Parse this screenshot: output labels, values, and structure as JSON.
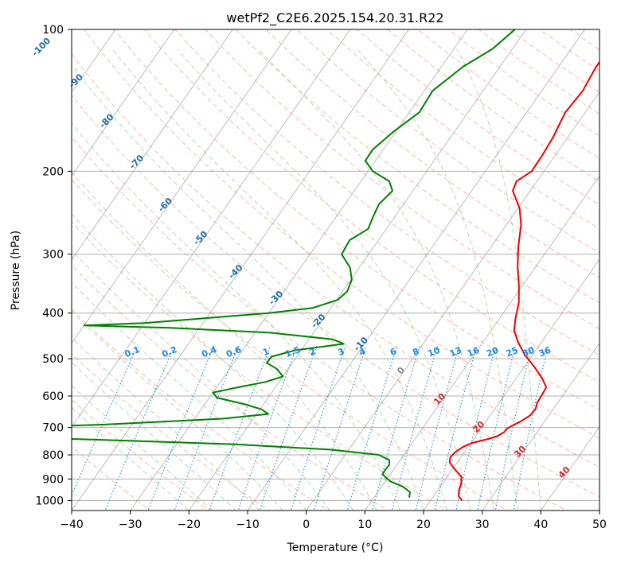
{
  "chart_data": {
    "type": "skew-t",
    "title": "wetPf2_C2E6.2025.154.20.31.R22",
    "xlabel": "Temperature (°C)",
    "ylabel": "Pressure (hPa)",
    "xlim": [
      -40,
      50
    ],
    "ylim": [
      1050,
      100
    ],
    "y_scale": "log",
    "grid": true,
    "x_ticks": [
      -40,
      -30,
      -20,
      -10,
      0,
      10,
      20,
      30,
      40,
      50
    ],
    "y_ticks": [
      100,
      200,
      300,
      400,
      500,
      600,
      700,
      800,
      900,
      1000
    ],
    "series": [
      {
        "key": "temperature",
        "color": "#ee0000",
        "points": [
          [
            1000,
            25.4
          ],
          [
            980,
            24.3
          ],
          [
            950,
            23.6
          ],
          [
            920,
            23.2
          ],
          [
            890,
            22.4
          ],
          [
            860,
            20.5
          ],
          [
            830,
            18.7
          ],
          [
            810,
            18.2
          ],
          [
            790,
            18.4
          ],
          [
            770,
            19.1
          ],
          [
            755,
            20.2
          ],
          [
            740,
            22.5
          ],
          [
            730,
            23.7
          ],
          [
            715,
            24.4
          ],
          [
            705,
            24.4
          ],
          [
            695,
            24.9
          ],
          [
            680,
            25.9
          ],
          [
            660,
            26.8
          ],
          [
            640,
            27.0
          ],
          [
            620,
            26.5
          ],
          [
            600,
            26.4
          ],
          [
            575,
            26.2
          ],
          [
            550,
            24.4
          ],
          [
            520,
            21.7
          ],
          [
            490,
            18.6
          ],
          [
            460,
            15.9
          ],
          [
            435,
            13.9
          ],
          [
            410,
            12.7
          ],
          [
            380,
            11.4
          ],
          [
            350,
            9.4
          ],
          [
            320,
            7.0
          ],
          [
            290,
            4.7
          ],
          [
            260,
            2.5
          ],
          [
            240,
            0.3
          ],
          [
            220,
            -3.0
          ],
          [
            210,
            -3.5
          ],
          [
            200,
            -2.1
          ],
          [
            185,
            -2.2
          ],
          [
            170,
            -2.5
          ],
          [
            150,
            -3.4
          ],
          [
            135,
            -3.0
          ],
          [
            120,
            -3.6
          ],
          [
            110,
            -3.5
          ],
          [
            100,
            -3.5
          ]
        ]
      },
      {
        "key": "dewpoint",
        "color": "#008000",
        "points": [
          [
            985,
            16.0
          ],
          [
            960,
            15.5
          ],
          [
            935,
            13.7
          ],
          [
            910,
            10.8
          ],
          [
            880,
            8.7
          ],
          [
            860,
            8.6
          ],
          [
            840,
            8.7
          ],
          [
            820,
            8.1
          ],
          [
            800,
            5.7
          ],
          [
            780,
            -3.0
          ],
          [
            760,
            -20.0
          ],
          [
            742,
            -45.0
          ],
          [
            736,
            -55.0
          ],
          [
            700,
            -60.0
          ],
          [
            690,
            -45.0
          ],
          [
            670,
            -25.0
          ],
          [
            655,
            -18.0
          ],
          [
            640,
            -19.8
          ],
          [
            625,
            -23.1
          ],
          [
            605,
            -28.7
          ],
          [
            590,
            -30.0
          ],
          [
            575,
            -26.4
          ],
          [
            560,
            -22.3
          ],
          [
            545,
            -20.0
          ],
          [
            525,
            -22.0
          ],
          [
            510,
            -24.4
          ],
          [
            495,
            -24.3
          ],
          [
            480,
            -21.1
          ],
          [
            465,
            -13.5
          ],
          [
            455,
            -15.9
          ],
          [
            440,
            -27.6
          ],
          [
            430,
            -45.0
          ],
          [
            425,
            -60.0
          ],
          [
            420,
            -50.0
          ],
          [
            410,
            -40.0
          ],
          [
            400,
            -30.0
          ],
          [
            390,
            -23.1
          ],
          [
            375,
            -19.8
          ],
          [
            360,
            -19.2
          ],
          [
            340,
            -19.8
          ],
          [
            320,
            -21.6
          ],
          [
            300,
            -24.6
          ],
          [
            280,
            -24.9
          ],
          [
            265,
            -23.1
          ],
          [
            250,
            -23.7
          ],
          [
            235,
            -24.2
          ],
          [
            220,
            -23.5
          ],
          [
            210,
            -25.2
          ],
          [
            200,
            -29.2
          ],
          [
            190,
            -31.7
          ],
          [
            180,
            -31.8
          ],
          [
            165,
            -30.4
          ],
          [
            150,
            -28.3
          ],
          [
            135,
            -28.6
          ],
          [
            120,
            -26.3
          ],
          [
            110,
            -23.4
          ],
          [
            100,
            -21.9
          ]
        ]
      }
    ],
    "isotherm_labels": [
      {
        "t": -100,
        "p": 110
      },
      {
        "t": -90,
        "p": 130
      },
      {
        "t": -80,
        "p": 158
      },
      {
        "t": -70,
        "p": 193
      },
      {
        "t": -60,
        "p": 238
      },
      {
        "t": -50,
        "p": 280
      },
      {
        "t": -40,
        "p": 330
      },
      {
        "t": -30,
        "p": 375
      },
      {
        "t": -20,
        "p": 420
      },
      {
        "t": -10,
        "p": 470
      },
      {
        "t": 0,
        "p": 535
      },
      {
        "t": 10,
        "p": 615
      },
      {
        "t": 20,
        "p": 705
      },
      {
        "t": 30,
        "p": 795
      },
      {
        "t": 40,
        "p": 880
      }
    ],
    "mixing_ratios": [
      0.1,
      0.2,
      0.4,
      0.6,
      1,
      1.5,
      2,
      3,
      4,
      6,
      8,
      10,
      13,
      16,
      20,
      25,
      30,
      36
    ],
    "mixing_ratio_label_p": 490,
    "colors": {
      "isotherm_label_cold": "#1f6aa5",
      "isotherm_label_warm": "#d62728",
      "mixing_ratio": "#1e88e5",
      "dry_adiabat": "#ff8a65",
      "moist_adiabat": "#66bb6a",
      "grid": "#b0b0b0",
      "isotherm": "#8c8c8c",
      "special_dry": "#d9b28c"
    }
  }
}
